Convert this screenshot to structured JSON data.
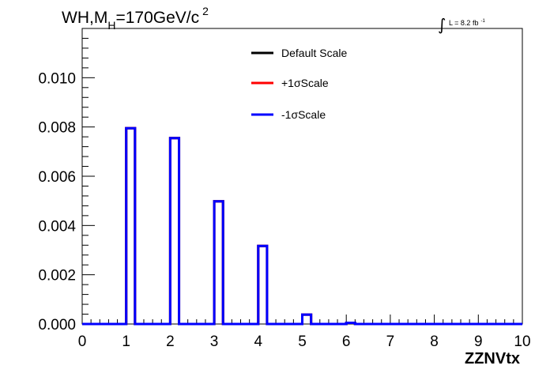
{
  "chart_data": {
    "type": "line",
    "title": {
      "prefix": "WH,M",
      "subscript": "H",
      "middle": "=170GeV/c",
      "superscript": "2"
    },
    "luminosity": {
      "integral_symbol": "∫",
      "text": "L = 8.2 fb",
      "superscript": "-1"
    },
    "xlabel": "ZZNVtx",
    "ylabel": "",
    "xlim": [
      0,
      10
    ],
    "ylim": [
      0,
      0.012
    ],
    "x_ticks": [
      0,
      1,
      2,
      3,
      4,
      5,
      6,
      7,
      8,
      9,
      10
    ],
    "x_tick_labels": [
      "0",
      "1",
      "2",
      "3",
      "4",
      "5",
      "6",
      "7",
      "8",
      "9",
      "10"
    ],
    "y_ticks": [
      0,
      0.002,
      0.004,
      0.006,
      0.008,
      0.01
    ],
    "y_tick_labels": [
      "0.000",
      "0.002",
      "0.004",
      "0.006",
      "0.008",
      "0.010"
    ],
    "grid": false,
    "legend_position": "top-center",
    "bin_edges": [
      0,
      0.2,
      0.4,
      0.6,
      0.8,
      1.0,
      1.2,
      1.4,
      1.6,
      1.8,
      2.0,
      2.2,
      2.4,
      2.6,
      2.8,
      3.0,
      3.2,
      3.4,
      3.6,
      3.8,
      4.0,
      4.2,
      4.4,
      4.6,
      4.8,
      5.0,
      5.2,
      5.4,
      5.6,
      5.8,
      6.0,
      6.2,
      6.4,
      6.6,
      6.8,
      7.0,
      7.2,
      7.4,
      7.6,
      7.8,
      8.0,
      8.2,
      8.4,
      8.6,
      8.8,
      9.0,
      9.2,
      9.4,
      9.6,
      9.8,
      10.0
    ],
    "series": [
      {
        "name": "Default Scale",
        "color": "#000000",
        "values": [
          0,
          0,
          0,
          0,
          0,
          0.00795,
          0,
          0,
          0,
          0,
          0.00755,
          0,
          0,
          0,
          0,
          0.00498,
          0,
          0,
          0,
          0,
          0.00317,
          0,
          0,
          0,
          0,
          0.00038,
          0,
          0,
          0,
          0,
          5e-05,
          0,
          0,
          0,
          0,
          0,
          0,
          0,
          0,
          0,
          0,
          0,
          0,
          0,
          0,
          0,
          0,
          0,
          0,
          0
        ]
      },
      {
        "name": "+1σScale",
        "color": "#ff0000",
        "values": [
          0,
          0,
          0,
          0,
          0,
          0.00795,
          0,
          0,
          0,
          0,
          0.00755,
          0,
          0,
          0,
          0,
          0.00498,
          0,
          0,
          0,
          0,
          0.00317,
          0,
          0,
          0,
          0,
          0.00038,
          0,
          0,
          0,
          0,
          5e-05,
          0,
          0,
          0,
          0,
          0,
          0,
          0,
          0,
          0,
          0,
          0,
          0,
          0,
          0,
          0,
          0,
          0,
          0,
          0
        ]
      },
      {
        "name": "-1σScale",
        "color": "#0000ff",
        "values": [
          0,
          0,
          0,
          0,
          0,
          0.00795,
          0,
          0,
          0,
          0,
          0.00755,
          0,
          0,
          0,
          0,
          0.00498,
          0,
          0,
          0,
          0,
          0.00317,
          0,
          0,
          0,
          0,
          0.00038,
          0,
          0,
          0,
          0,
          5e-05,
          0,
          0,
          0,
          0,
          0,
          0,
          0,
          0,
          0,
          0,
          0,
          0,
          0,
          0,
          0,
          0,
          0,
          0,
          0
        ]
      }
    ]
  }
}
